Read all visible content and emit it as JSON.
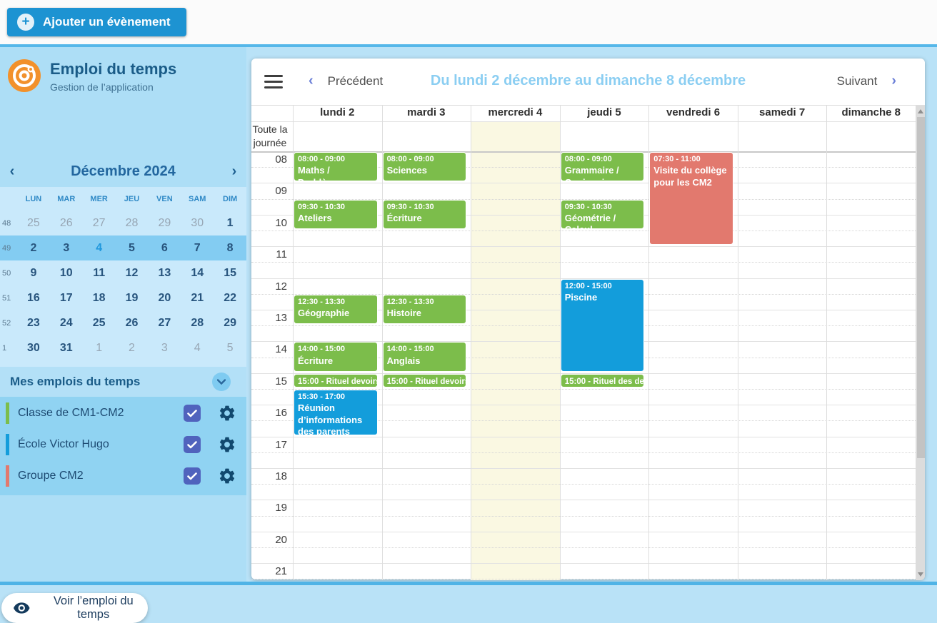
{
  "topbar": {
    "add_event_label": "Ajouter un évènement"
  },
  "sidebar": {
    "app_title": "Emploi du temps",
    "app_subtitle": "Gestion de l’application",
    "mini_calendar": {
      "month_label": "Décembre 2024",
      "prev_icon": "chevron-left",
      "next_icon": "chevron-right",
      "dow": [
        "LUN",
        "MAR",
        "MER",
        "JEU",
        "VEN",
        "SAM",
        "DIM"
      ],
      "weeks": [
        {
          "num": "48",
          "selected": false,
          "days": [
            {
              "d": "25",
              "muted": true
            },
            {
              "d": "26",
              "muted": true
            },
            {
              "d": "27",
              "muted": true
            },
            {
              "d": "28",
              "muted": true
            },
            {
              "d": "29",
              "muted": true
            },
            {
              "d": "30",
              "muted": true
            },
            {
              "d": "1",
              "muted": false
            }
          ]
        },
        {
          "num": "49",
          "selected": true,
          "days": [
            {
              "d": "2"
            },
            {
              "d": "3"
            },
            {
              "d": "4",
              "today": true
            },
            {
              "d": "5"
            },
            {
              "d": "6"
            },
            {
              "d": "7"
            },
            {
              "d": "8"
            }
          ]
        },
        {
          "num": "50",
          "selected": false,
          "days": [
            {
              "d": "9"
            },
            {
              "d": "10"
            },
            {
              "d": "11"
            },
            {
              "d": "12"
            },
            {
              "d": "13"
            },
            {
              "d": "14"
            },
            {
              "d": "15"
            }
          ]
        },
        {
          "num": "51",
          "selected": false,
          "days": [
            {
              "d": "16"
            },
            {
              "d": "17"
            },
            {
              "d": "18"
            },
            {
              "d": "19"
            },
            {
              "d": "20"
            },
            {
              "d": "21"
            },
            {
              "d": "22"
            }
          ]
        },
        {
          "num": "52",
          "selected": false,
          "days": [
            {
              "d": "23"
            },
            {
              "d": "24"
            },
            {
              "d": "25"
            },
            {
              "d": "26"
            },
            {
              "d": "27"
            },
            {
              "d": "28"
            },
            {
              "d": "29"
            }
          ]
        },
        {
          "num": "1",
          "selected": false,
          "days": [
            {
              "d": "30"
            },
            {
              "d": "31"
            },
            {
              "d": "1",
              "muted": true
            },
            {
              "d": "2",
              "muted": true
            },
            {
              "d": "3",
              "muted": true
            },
            {
              "d": "4",
              "muted": true
            },
            {
              "d": "5",
              "muted": true
            }
          ]
        }
      ]
    },
    "my_timetables": {
      "title": "Mes emplois du temps",
      "collapse_icon": "chevron-down",
      "items": [
        {
          "label": "Classe de CM1-CM2",
          "color": "#7cbd4b",
          "checked": true
        },
        {
          "label": "École Victor Hugo",
          "color": "#139ddb",
          "checked": true
        },
        {
          "label": "Groupe CM2",
          "color": "#e2796e",
          "checked": true
        }
      ]
    },
    "view_button_label": "Voir l’emploi du temps"
  },
  "calendar": {
    "prev_label": "Précédent",
    "next_label": "Suivant",
    "title": "Du lundi 2 décembre au dimanche 8 décembre",
    "all_day_label_line1": "Toute la",
    "all_day_label_line2": "journée",
    "day_headers": [
      "lundi 2",
      "mardi 3",
      "mercredi 4",
      "jeudi 5",
      "vendredi 6",
      "samedi 7",
      "dimanche 8"
    ],
    "highlighted_day_index": 2,
    "hours": [
      "08",
      "09",
      "10",
      "11",
      "12",
      "13",
      "14",
      "15",
      "16",
      "17",
      "18",
      "19",
      "20",
      "21"
    ],
    "events": [
      {
        "day": 0,
        "start": "08:00",
        "end": "09:00",
        "time_label": "08:00 - 09:00",
        "title": "Maths / Problèmes",
        "color": "green"
      },
      {
        "day": 0,
        "start": "09:30",
        "end": "10:30",
        "time_label": "09:30 - 10:30",
        "title": "Ateliers",
        "color": "green"
      },
      {
        "day": 0,
        "start": "12:30",
        "end": "13:30",
        "time_label": "12:30 - 13:30",
        "title": "Géographie",
        "color": "green"
      },
      {
        "day": 0,
        "start": "14:00",
        "end": "15:00",
        "time_label": "14:00 - 15:00",
        "title": "Écriture",
        "color": "green"
      },
      {
        "day": 0,
        "start": "15:00",
        "end": "15:30",
        "time_label": "15:00",
        "title": "Rituel devoirs",
        "color": "green",
        "inline": true
      },
      {
        "day": 0,
        "start": "15:30",
        "end": "17:00",
        "time_label": "15:30 - 17:00",
        "title": "Réunion d’informations des parents",
        "color": "blue"
      },
      {
        "day": 1,
        "start": "08:00",
        "end": "09:00",
        "time_label": "08:00 - 09:00",
        "title": "Sciences",
        "color": "green"
      },
      {
        "day": 1,
        "start": "09:30",
        "end": "10:30",
        "time_label": "09:30 - 10:30",
        "title": "Écriture",
        "color": "green"
      },
      {
        "day": 1,
        "start": "12:30",
        "end": "13:30",
        "time_label": "12:30 - 13:30",
        "title": "Histoire",
        "color": "green"
      },
      {
        "day": 1,
        "start": "14:00",
        "end": "15:00",
        "time_label": "14:00 - 15:00",
        "title": "Anglais",
        "color": "green"
      },
      {
        "day": 1,
        "start": "15:00",
        "end": "15:30",
        "time_label": "15:00",
        "title": "Rituel devoirs",
        "color": "green",
        "inline": true
      },
      {
        "day": 3,
        "start": "08:00",
        "end": "09:00",
        "time_label": "08:00 - 09:00",
        "title": "Grammaire / Conjugaison",
        "color": "green"
      },
      {
        "day": 3,
        "start": "09:30",
        "end": "10:30",
        "time_label": "09:30 - 10:30",
        "title": "Géométrie / Calcul",
        "color": "green"
      },
      {
        "day": 3,
        "start": "12:00",
        "end": "15:00",
        "time_label": "12:00 - 15:00",
        "title": "Piscine",
        "color": "blue"
      },
      {
        "day": 3,
        "start": "15:00",
        "end": "15:30",
        "time_label": "15:00",
        "title": "Rituel des devoirs",
        "color": "green",
        "inline": true
      },
      {
        "day": 4,
        "start": "07:30",
        "end": "11:00",
        "time_label": "07:30 - 11:00",
        "title": "Visite du collège pour les CM2",
        "color": "red",
        "clip_top": true
      }
    ]
  },
  "colors": {
    "green": "#7cbd4b",
    "blue": "#139ddb",
    "red": "#e2796e",
    "accent": "#1d93d2",
    "selected_week": "#83ccf2",
    "day_off_bg": "#faf8e2",
    "title_light_blue": "#8bcef2"
  }
}
